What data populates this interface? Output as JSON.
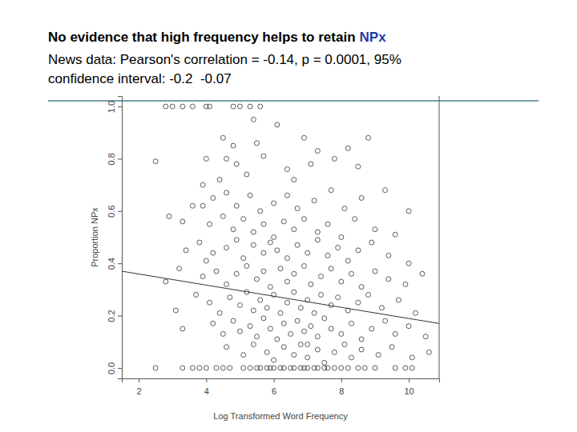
{
  "chart_data": {
    "type": "scatter",
    "title": [
      "No evidence that high frequency helps to retain",
      "NPx"
    ],
    "title_colors": [
      "#000000",
      "#1f3ca6"
    ],
    "subtitle": [
      "News data: Pearson's correlation = -0.14, p = 0.0001, 95%",
      "confidence interval: -0.2  -0.07"
    ],
    "x_label": "Log Transformed Word Frequency",
    "y_label": "Proportion NPx",
    "color": "#333333",
    "marker": "circle-open",
    "xlim": [
      1.5,
      10.9
    ],
    "ylim": [
      -0.04,
      1.04
    ],
    "xticks": [
      2,
      4,
      6,
      8,
      10
    ],
    "yticks": [
      {
        "value": 0,
        "label": "0.0"
      },
      {
        "value": 0.2,
        "label": "0.2"
      },
      {
        "value": 0.4,
        "label": "0.4"
      },
      {
        "value": 0.6,
        "label": "0.6"
      },
      {
        "value": 0.8,
        "label": "0.8"
      },
      {
        "value": 1,
        "label": "1.0"
      }
    ],
    "x": [
      2.8,
      3.0,
      3.3,
      3.6,
      4.0,
      4.1,
      4.8,
      5.0,
      5.3,
      5.6,
      2.5,
      3.3,
      3.6,
      3.8,
      4.0,
      4.3,
      4.5,
      4.7,
      5.1,
      5.3,
      5.5,
      5.6,
      5.8,
      5.9,
      6.0,
      6.2,
      6.3,
      6.5,
      6.6,
      6.8,
      6.9,
      7.0,
      7.2,
      7.3,
      7.5,
      7.6,
      7.8,
      8.0,
      8.2,
      8.5,
      8.7,
      9.0,
      9.6,
      9.9,
      10.1,
      4.5,
      5.4,
      6.1,
      4.8,
      5.5,
      6.9,
      7.3,
      8.2,
      8.8,
      4.6,
      2.5,
      4.0,
      4.9,
      5.7,
      6.4,
      7.1,
      7.8,
      8.5,
      3.9,
      4.4,
      5.2,
      6.6,
      3.6,
      3.9,
      4.2,
      4.6,
      4.9,
      5.3,
      5.6,
      6.0,
      6.4,
      6.7,
      7.2,
      7.7,
      8.1,
      8.6,
      9.3,
      10.0,
      2.9,
      3.3,
      4.1,
      4.5,
      4.8,
      5.1,
      5.4,
      5.7,
      6.0,
      6.3,
      6.6,
      6.9,
      7.3,
      7.6,
      8.0,
      8.4,
      9.0,
      9.6,
      3.4,
      3.8,
      4.2,
      4.6,
      4.9,
      5.1,
      5.4,
      5.7,
      5.9,
      6.1,
      6.4,
      6.7,
      7.0,
      7.3,
      7.6,
      7.9,
      8.2,
      8.5,
      8.9,
      9.4,
      10.0,
      4.0,
      2.8,
      3.2,
      3.9,
      4.3,
      4.6,
      4.9,
      5.2,
      5.5,
      5.7,
      5.9,
      6.2,
      6.4,
      6.6,
      6.9,
      7.1,
      7.4,
      7.7,
      8.0,
      8.3,
      8.6,
      9.0,
      9.4,
      9.9,
      10.4,
      3.1,
      3.7,
      4.1,
      4.4,
      4.7,
      5.0,
      5.2,
      5.4,
      5.6,
      5.8,
      6.0,
      6.2,
      6.4,
      6.6,
      6.8,
      7.0,
      7.2,
      7.4,
      7.7,
      7.9,
      8.2,
      8.5,
      8.8,
      9.2,
      9.7,
      10.2,
      3.3,
      4.2,
      4.5,
      4.8,
      5.0,
      5.3,
      5.5,
      5.7,
      5.9,
      6.1,
      6.3,
      6.5,
      6.7,
      6.9,
      7.1,
      7.3,
      7.5,
      7.7,
      8.0,
      8.3,
      8.6,
      8.9,
      9.3,
      9.6,
      10.0,
      10.5,
      4.6,
      5.1,
      5.4,
      5.8,
      6.0,
      6.3,
      6.6,
      6.8,
      7.0,
      7.3,
      7.5,
      7.8,
      8.1,
      8.3,
      8.6,
      9.1,
      9.5,
      10.1,
      10.6,
      7.0
    ],
    "values": [
      1,
      1,
      1,
      1,
      1,
      1,
      1,
      1,
      1,
      1,
      0,
      0,
      0,
      0,
      0,
      0,
      0,
      0,
      0,
      0,
      0,
      0,
      0,
      0,
      0,
      0,
      0,
      0,
      0,
      0,
      0,
      0,
      0,
      0,
      0,
      0,
      0,
      0,
      0,
      0,
      0,
      0,
      0,
      0,
      0,
      0.88,
      0.95,
      0.93,
      0.85,
      0.86,
      0.88,
      0.83,
      0.84,
      0.88,
      0.8,
      0.79,
      0.8,
      0.78,
      0.81,
      0.76,
      0.78,
      0.8,
      0.77,
      0.7,
      0.72,
      0.74,
      0.72,
      0.62,
      0.62,
      0.65,
      0.67,
      0.62,
      0.66,
      0.6,
      0.63,
      0.66,
      0.61,
      0.64,
      0.68,
      0.61,
      0.65,
      0.68,
      0.6,
      0.58,
      0.56,
      0.55,
      0.58,
      0.53,
      0.57,
      0.52,
      0.55,
      0.5,
      0.56,
      0.53,
      0.57,
      0.52,
      0.55,
      0.5,
      0.57,
      0.53,
      0.51,
      0.45,
      0.48,
      0.44,
      0.46,
      0.49,
      0.42,
      0.47,
      0.44,
      0.48,
      0.45,
      0.42,
      0.47,
      0.44,
      0.49,
      0.43,
      0.46,
      0.41,
      0.45,
      0.48,
      0.43,
      0.4,
      0.41,
      0.33,
      0.38,
      0.35,
      0.37,
      0.32,
      0.36,
      0.39,
      0.34,
      0.37,
      0.31,
      0.38,
      0.33,
      0.36,
      0.39,
      0.32,
      0.35,
      0.38,
      0.33,
      0.36,
      0.31,
      0.37,
      0.34,
      0.32,
      0.36,
      0.22,
      0.28,
      0.25,
      0.21,
      0.27,
      0.24,
      0.29,
      0.22,
      0.26,
      0.23,
      0.28,
      0.21,
      0.25,
      0.29,
      0.23,
      0.26,
      0.21,
      0.28,
      0.24,
      0.27,
      0.22,
      0.25,
      0.28,
      0.23,
      0.26,
      0.21,
      0.15,
      0.17,
      0.13,
      0.18,
      0.14,
      0.16,
      0.12,
      0.19,
      0.15,
      0.11,
      0.17,
      0.13,
      0.18,
      0.14,
      0.16,
      0.12,
      0.19,
      0.15,
      0.13,
      0.17,
      0.11,
      0.15,
      0.18,
      0.13,
      0.16,
      0.12,
      0.08,
      0.05,
      0.09,
      0.06,
      0.03,
      0.08,
      0.05,
      0.09,
      0.04,
      0.07,
      0.02,
      0.06,
      0.09,
      0.04,
      0.07,
      0.05,
      0.08,
      0.04,
      0.06,
      0.09
    ],
    "trend_line": {
      "x": [
        1.5,
        10.9
      ],
      "values": [
        0.37,
        0.17
      ]
    }
  }
}
